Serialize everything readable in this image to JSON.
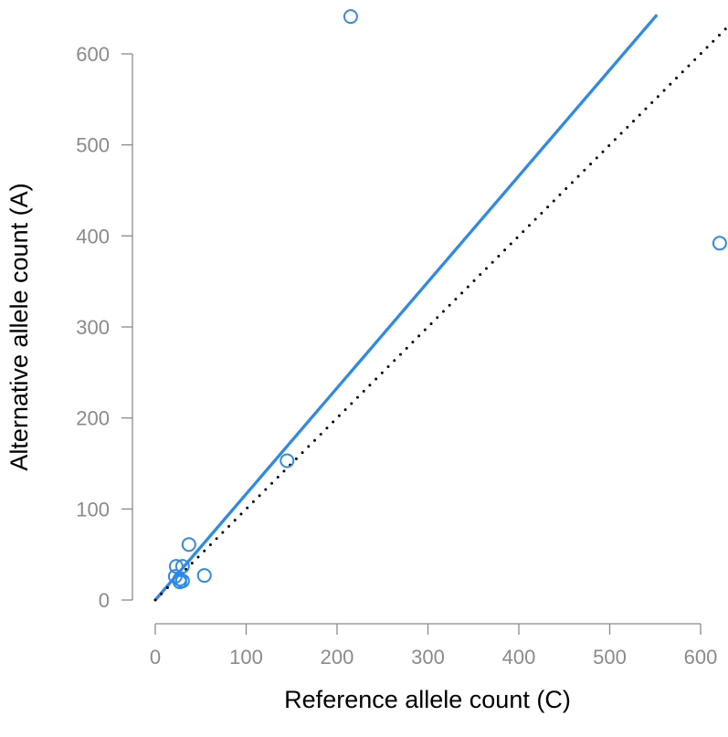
{
  "chart_data": {
    "type": "scatter",
    "title": "",
    "xlabel": "Reference allele count (C)",
    "ylabel": "Alternative allele count (A)",
    "xlim": [
      0,
      600
    ],
    "ylim": [
      0,
      600
    ],
    "x_ticks": [
      0,
      100,
      200,
      300,
      400,
      500,
      600
    ],
    "y_ticks": [
      0,
      100,
      200,
      300,
      400,
      500,
      600
    ],
    "x_tick_labels": [
      "0",
      "100",
      "200",
      "300",
      "400",
      "500",
      "600"
    ],
    "y_tick_labels": [
      "0",
      "100",
      "200",
      "300",
      "400",
      "500",
      "600"
    ],
    "grid": false,
    "legend": "none",
    "points": [
      {
        "x": 215,
        "y": 641
      },
      {
        "x": 621,
        "y": 392
      },
      {
        "x": 145,
        "y": 153
      },
      {
        "x": 37,
        "y": 61
      },
      {
        "x": 23,
        "y": 37
      },
      {
        "x": 30,
        "y": 37
      },
      {
        "x": 22,
        "y": 26
      },
      {
        "x": 27,
        "y": 23
      },
      {
        "x": 30,
        "y": 21
      },
      {
        "x": 27,
        "y": 20
      },
      {
        "x": 54,
        "y": 27
      }
    ],
    "lines": [
      {
        "kind": "fit",
        "style": "solid",
        "color": "#2f89e6",
        "from": [
          0,
          0
        ],
        "to": [
          552,
          643
        ]
      },
      {
        "kind": "identity",
        "style": "dotted",
        "color": "#000000",
        "from": [
          0,
          0
        ],
        "to": [
          630,
          630
        ]
      }
    ],
    "colors": {
      "points": "#2f89e6",
      "fit_line": "#2f89e6",
      "identity_line": "#000000",
      "axes": "#8a8a8a"
    }
  }
}
